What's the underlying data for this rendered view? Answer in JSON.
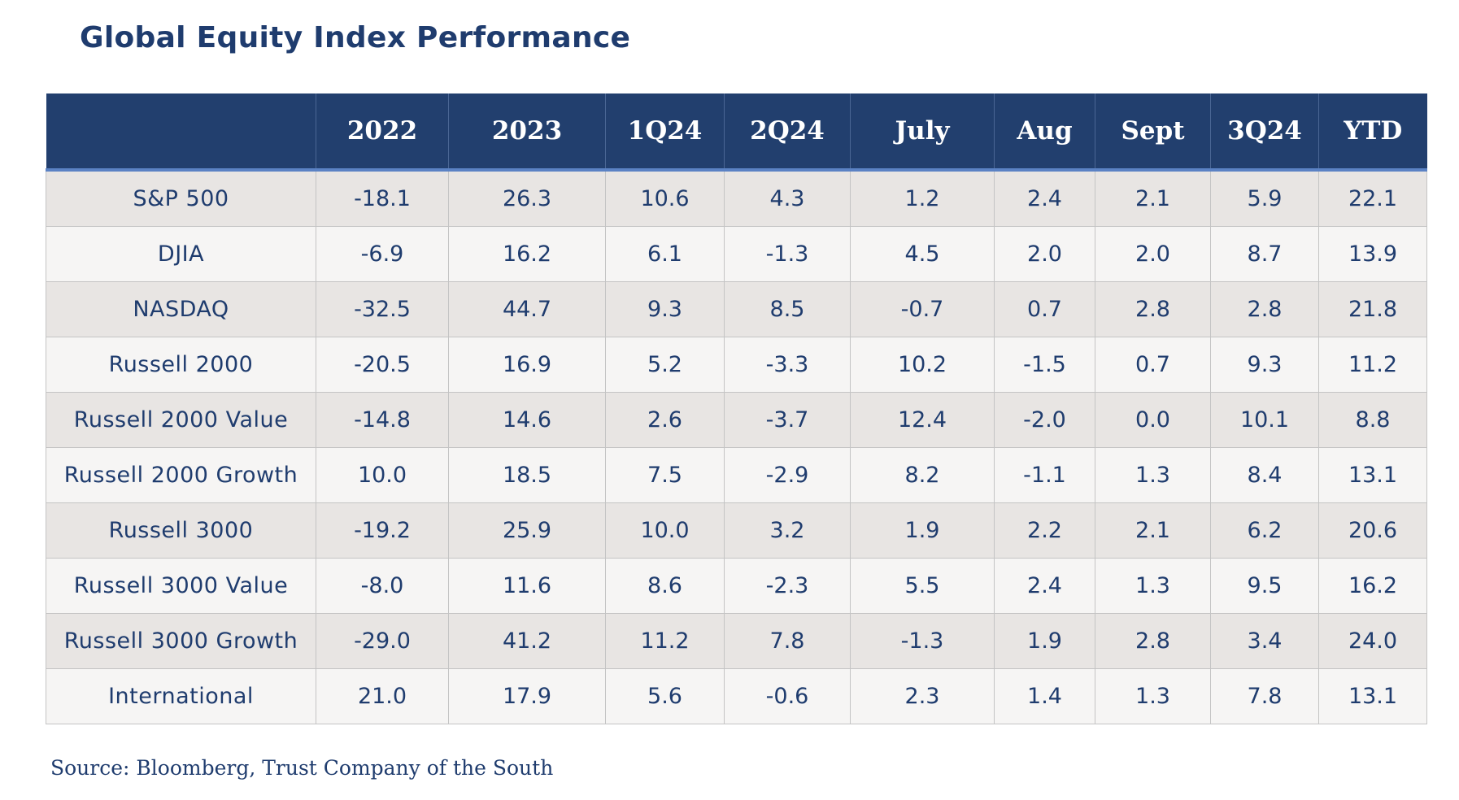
{
  "chart_data": {
    "type": "table",
    "title": "Global Equity Index Performance",
    "columns": [
      "",
      "2022",
      "2023",
      "1Q24",
      "2Q24",
      "July",
      "Aug",
      "Sept",
      "3Q24",
      "YTD"
    ],
    "rows": [
      {
        "label": "S&P 500",
        "values": [
          "-18.1",
          "26.3",
          "10.6",
          "4.3",
          "1.2",
          "2.4",
          "2.1",
          "5.9",
          "22.1"
        ]
      },
      {
        "label": "DJIA",
        "values": [
          "-6.9",
          "16.2",
          "6.1",
          "-1.3",
          "4.5",
          "2.0",
          "2.0",
          "8.7",
          "13.9"
        ]
      },
      {
        "label": "NASDAQ",
        "values": [
          "-32.5",
          "44.7",
          "9.3",
          "8.5",
          "-0.7",
          "0.7",
          "2.8",
          "2.8",
          "21.8"
        ]
      },
      {
        "label": "Russell 2000",
        "values": [
          "-20.5",
          "16.9",
          "5.2",
          "-3.3",
          "10.2",
          "-1.5",
          "0.7",
          "9.3",
          "11.2"
        ]
      },
      {
        "label": "Russell 2000 Value",
        "values": [
          "-14.8",
          "14.6",
          "2.6",
          "-3.7",
          "12.4",
          "-2.0",
          "0.0",
          "10.1",
          "8.8"
        ]
      },
      {
        "label": "Russell 2000 Growth",
        "values": [
          "10.0",
          "18.5",
          "7.5",
          "-2.9",
          "8.2",
          "-1.1",
          "1.3",
          "8.4",
          "13.1"
        ]
      },
      {
        "label": "Russell 3000",
        "values": [
          "-19.2",
          "25.9",
          "10.0",
          "3.2",
          "1.9",
          "2.2",
          "2.1",
          "6.2",
          "20.6"
        ]
      },
      {
        "label": "Russell 3000 Value",
        "values": [
          "-8.0",
          "11.6",
          "8.6",
          "-2.3",
          "5.5",
          "2.4",
          "1.3",
          "9.5",
          "16.2"
        ]
      },
      {
        "label": "Russell 3000 Growth",
        "values": [
          "-29.0",
          "41.2",
          "11.2",
          "7.8",
          "-1.3",
          "1.9",
          "2.8",
          "3.4",
          "24.0"
        ]
      },
      {
        "label": "International",
        "values": [
          "21.0",
          "17.9",
          "5.6",
          "-0.6",
          "2.3",
          "1.4",
          "1.3",
          "7.8",
          "13.1"
        ]
      }
    ],
    "source": "Source: Bloomberg, Trust Company of the South"
  },
  "colors": {
    "header_bg": "#223f6e",
    "header_rule": "#5b82c4",
    "text": "#1f3c6e",
    "row_shade": "#e8e5e3",
    "row_light": "#f6f5f4"
  }
}
